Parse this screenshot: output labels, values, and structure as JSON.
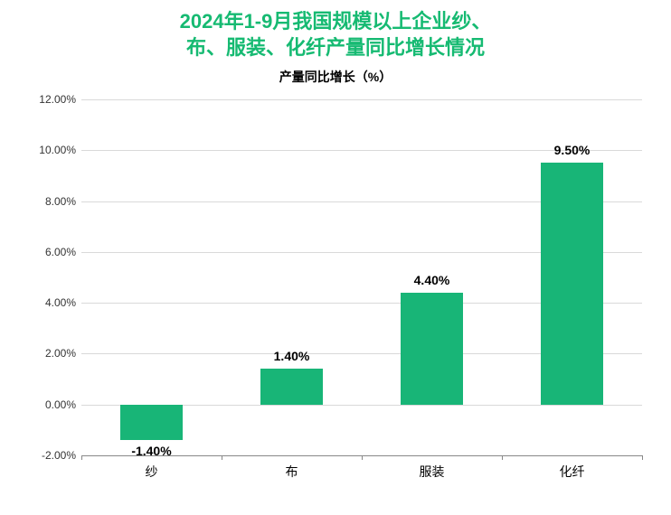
{
  "chart": {
    "type": "bar",
    "title_line1": "2024年1-9月我国规模以上企业纱、",
    "title_line2": "布、服装、化纤产量同比增长情况",
    "title_color": "#16ba72",
    "title_fontsize": 22,
    "subtitle": "产量同比增长（%）",
    "subtitle_color": "#000000",
    "subtitle_fontsize": 14,
    "categories": [
      "纱",
      "布",
      "服装",
      "化纤"
    ],
    "values": [
      -1.4,
      1.4,
      4.4,
      9.5
    ],
    "value_labels": [
      "-1.40%",
      "1.40%",
      "4.40%",
      "9.50%"
    ],
    "bar_color": "#18b577",
    "bar_width_ratio": 0.45,
    "ylim": [
      -2,
      12
    ],
    "ytick_step": 2,
    "ytick_labels": [
      "-2.00%",
      "0.00%",
      "2.00%",
      "4.00%",
      "6.00%",
      "8.00%",
      "10.00%",
      "12.00%"
    ],
    "ytick_values": [
      -2,
      0,
      2,
      4,
      6,
      8,
      10,
      12
    ],
    "grid_color": "#d9d9d9",
    "axis_color": "#888888",
    "background_color": "#ffffff",
    "label_fontsize": 14,
    "ytick_fontsize": 12,
    "xtick_fontsize": 14
  }
}
